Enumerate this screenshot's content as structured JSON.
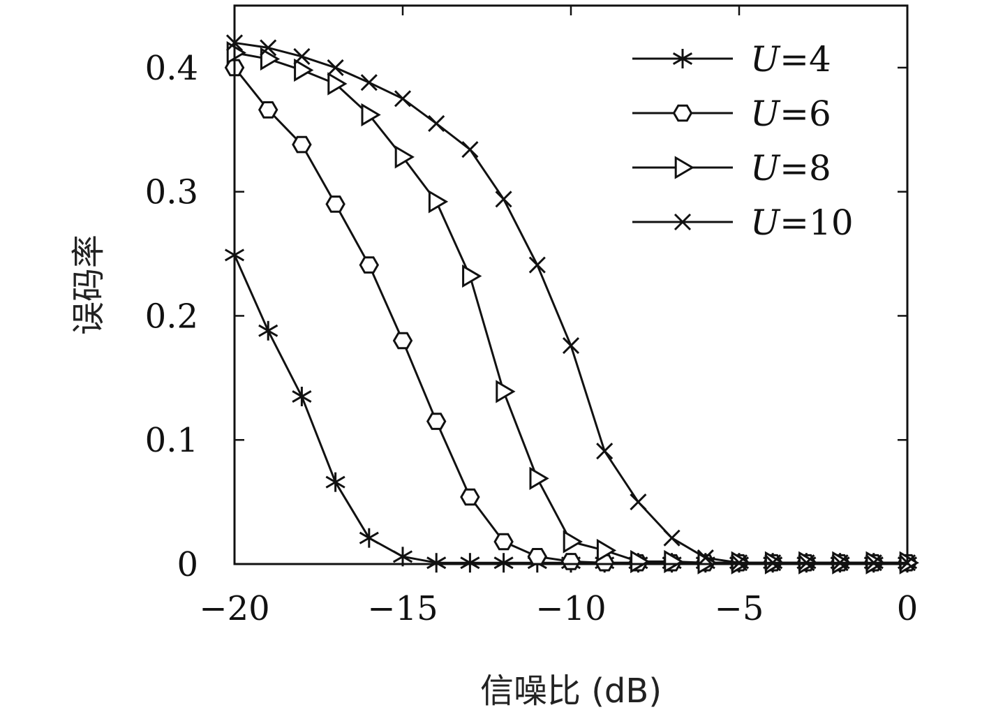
{
  "chart_data": {
    "type": "line",
    "xlabel": "信噪比 (dB)",
    "ylabel": "误码率",
    "xlim": [
      -20,
      0
    ],
    "ylim": [
      0,
      0.45
    ],
    "grid": false,
    "legend_position": "top-right",
    "x_ticks": [
      -20,
      -15,
      -10,
      -5,
      0
    ],
    "x_tick_labels": [
      "−20",
      "−15",
      "−10",
      "−5",
      "0"
    ],
    "y_ticks": [
      0,
      0.1,
      0.2,
      0.3,
      0.4
    ],
    "y_tick_labels": [
      "0",
      "0.1",
      "0.2",
      "0.3",
      "0.4"
    ],
    "x": [
      -20,
      -19,
      -18,
      -17,
      -16,
      -15,
      -14,
      -13,
      -12,
      -11,
      -10,
      -9,
      -8,
      -7,
      -6,
      -5,
      -4,
      -3,
      -2,
      -1,
      0
    ],
    "series": [
      {
        "name": "U=4",
        "legend_var": "U",
        "legend_rest": "=4",
        "marker": "asterisk",
        "values": [
          0.249,
          0.188,
          0.135,
          0.066,
          0.021,
          0.006,
          0.001,
          0.001,
          0.001,
          0.001,
          0.001,
          0.001,
          0.001,
          0.001,
          0.001,
          0.001,
          0.001,
          0.001,
          0.001,
          0.001,
          0.001
        ]
      },
      {
        "name": "U=6",
        "legend_var": "U",
        "legend_rest": "=6",
        "marker": "hexagon",
        "values": [
          0.4,
          0.366,
          0.338,
          0.29,
          0.241,
          0.18,
          0.115,
          0.054,
          0.018,
          0.006,
          0.002,
          0.001,
          0.001,
          0.001,
          0.001,
          0.001,
          0.001,
          0.001,
          0.001,
          0.001,
          0.001
        ]
      },
      {
        "name": "U=8",
        "legend_var": "U",
        "legend_rest": "=8",
        "marker": "triangle-right",
        "values": [
          0.412,
          0.407,
          0.398,
          0.387,
          0.362,
          0.328,
          0.292,
          0.232,
          0.139,
          0.069,
          0.018,
          0.011,
          0.002,
          0.002,
          0.001,
          0.001,
          0.001,
          0.001,
          0.001,
          0.001,
          0.001
        ]
      },
      {
        "name": "U=10",
        "legend_var": "U",
        "legend_rest": "=10",
        "marker": "x",
        "values": [
          0.42,
          0.416,
          0.409,
          0.4,
          0.388,
          0.375,
          0.355,
          0.334,
          0.294,
          0.241,
          0.176,
          0.091,
          0.05,
          0.021,
          0.005,
          0.001,
          0.001,
          0.001,
          0.001,
          0.001,
          0.001
        ]
      }
    ]
  }
}
